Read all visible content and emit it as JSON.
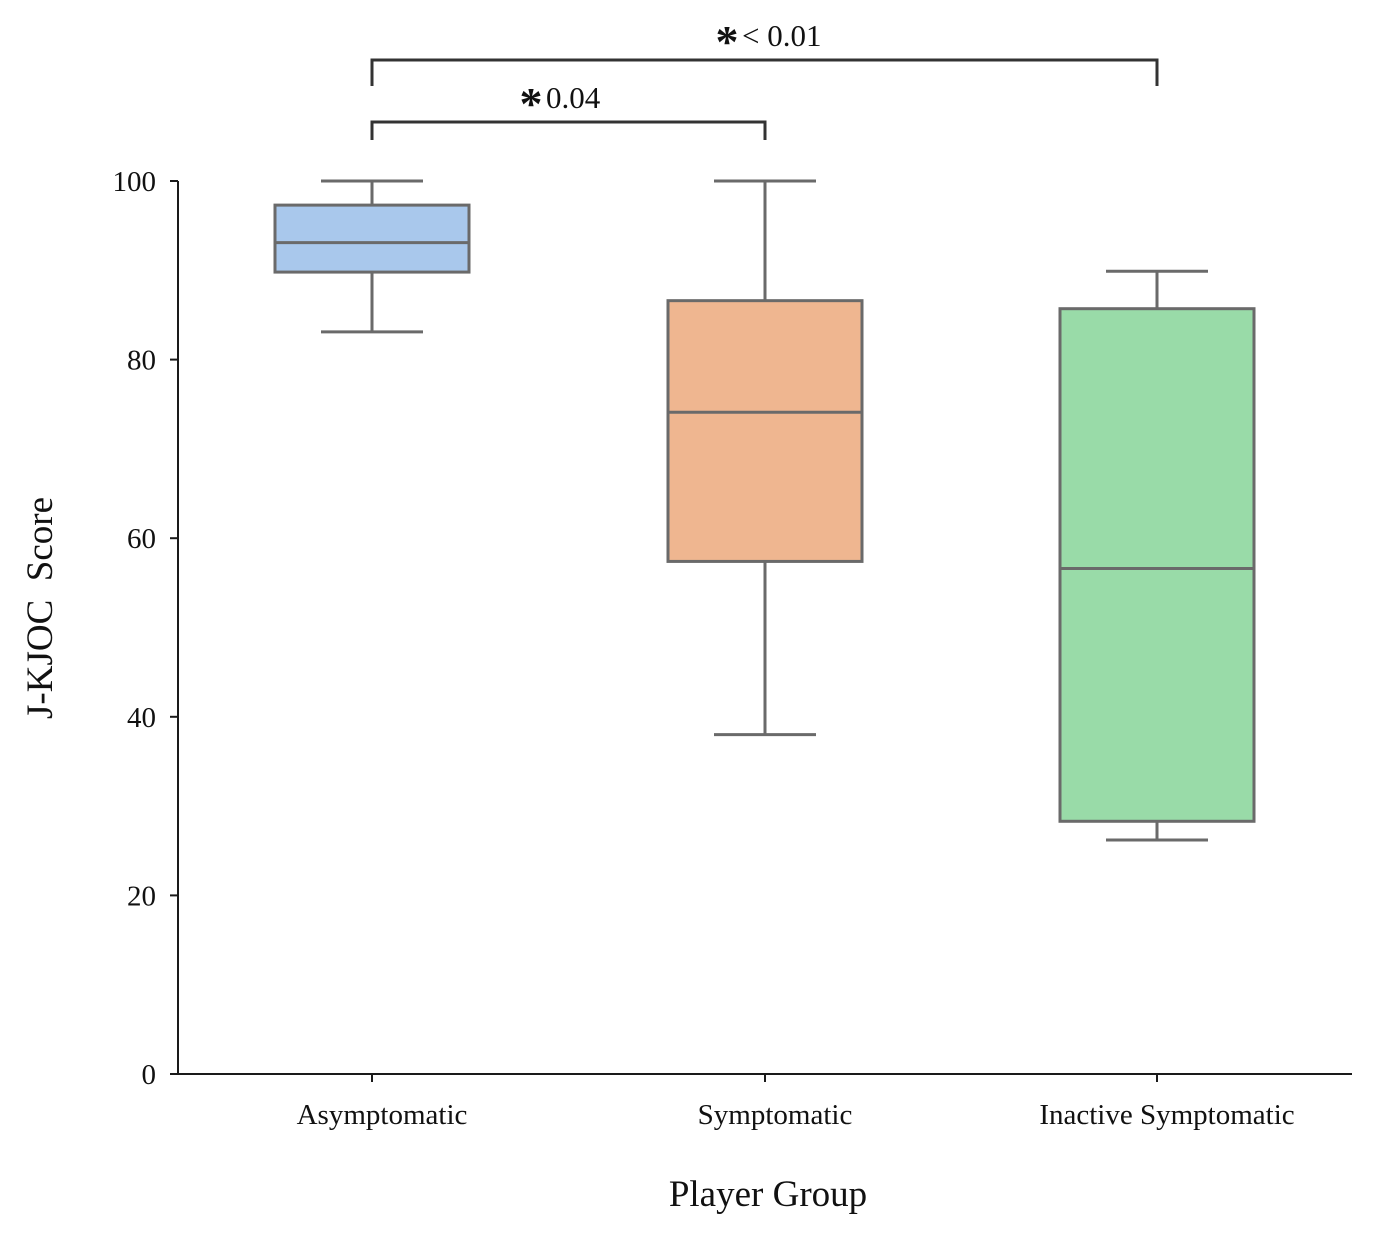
{
  "chart_data": {
    "type": "box",
    "xlabel": "Player Group",
    "ylabel": "J-KJOC  Score",
    "ylim": [
      0,
      100
    ],
    "yticks": [
      0,
      20,
      40,
      60,
      80,
      100
    ],
    "yticks_text": [
      "0",
      "20",
      "40",
      "60",
      "80",
      "100"
    ],
    "categories": [
      "Asymptomatic",
      "Symptomatic",
      "Inactive Symptomatic"
    ],
    "boxes": [
      {
        "category": "Asymptomatic",
        "whisker_low": 83.1,
        "q1": 89.8,
        "median": 93.1,
        "q3": 97.3,
        "whisker_high": 100,
        "color": "#a9c8ec"
      },
      {
        "category": "Symptomatic",
        "whisker_low": 38.0,
        "q1": 57.4,
        "median": 74.1,
        "q3": 86.6,
        "whisker_high": 100,
        "color": "#efb690"
      },
      {
        "category": "Inactive Symptomatic",
        "whisker_low": 26.2,
        "q1": 28.3,
        "median": 56.6,
        "q3": 85.7,
        "whisker_high": 89.9,
        "color": "#99dba8"
      }
    ],
    "significance": [
      {
        "from": "Asymptomatic",
        "to": "Symptomatic",
        "star": "*",
        "text": "0.04"
      },
      {
        "from": "Asymptomatic",
        "to": "Inactive Symptomatic",
        "star": "*",
        "text": "< 0.01"
      }
    ],
    "grid": false,
    "legend": "none",
    "box_edge_color": "#6a6a6a",
    "axis_color": "#1a1a1a"
  }
}
